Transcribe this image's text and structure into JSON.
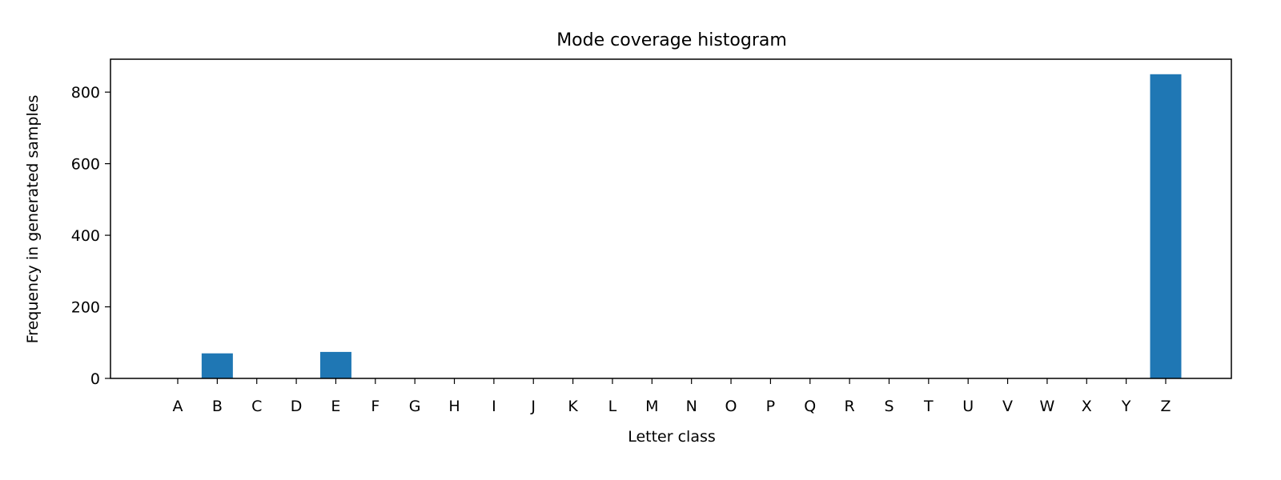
{
  "chart_data": {
    "type": "bar",
    "title": "Mode coverage histogram",
    "xlabel": "Letter class",
    "ylabel": "Frequency in generated samples",
    "categories": [
      "A",
      "B",
      "C",
      "D",
      "E",
      "F",
      "G",
      "H",
      "I",
      "J",
      "K",
      "L",
      "M",
      "N",
      "O",
      "P",
      "Q",
      "R",
      "S",
      "T",
      "U",
      "V",
      "W",
      "X",
      "Y",
      "Z"
    ],
    "values": [
      0,
      70,
      0,
      0,
      74,
      0,
      0,
      0,
      0,
      0,
      0,
      0,
      0,
      0,
      0,
      0,
      0,
      0,
      0,
      0,
      0,
      0,
      0,
      0,
      0,
      850
    ],
    "ylim": [
      0,
      892
    ],
    "yticks": [
      0,
      200,
      400,
      600,
      800
    ],
    "bar_color": "#1f77b4",
    "grid": false,
    "legend": "none"
  }
}
